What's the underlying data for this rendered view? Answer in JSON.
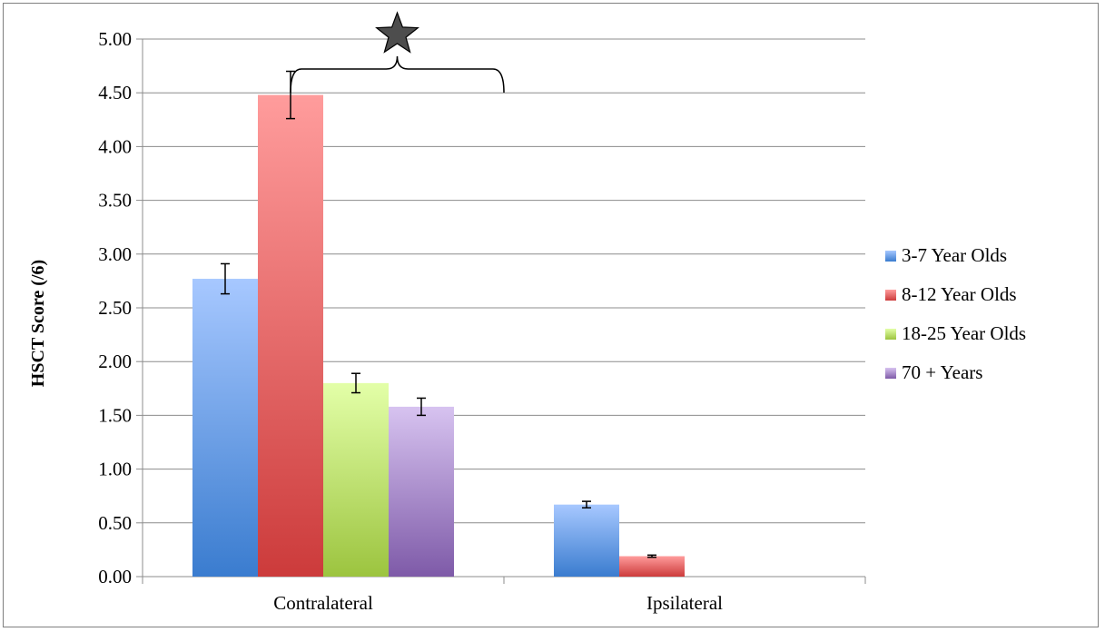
{
  "chart_data": {
    "type": "bar",
    "title": "",
    "xlabel": "",
    "ylabel": "HSCT Score (/6)",
    "categories": [
      "Contralateral",
      "Ipsilateral"
    ],
    "ylim": [
      0,
      5
    ],
    "yticks": [
      "0.00",
      "0.50",
      "1.00",
      "1.50",
      "2.00",
      "2.50",
      "3.00",
      "3.50",
      "4.00",
      "4.50",
      "5.00"
    ],
    "grid": true,
    "legend_position": "right",
    "series": [
      {
        "name": "3-7 Year Olds",
        "values": [
          2.77,
          0.67
        ],
        "errors": [
          0.14,
          0.03
        ],
        "color_top": "#a7c8ff",
        "color_bottom": "#3a7ccf"
      },
      {
        "name": "8-12 Year Olds",
        "values": [
          4.48,
          0.19
        ],
        "errors": [
          0.22,
          0.01
        ],
        "color_top": "#ff9c9c",
        "color_bottom": "#cc3b3b"
      },
      {
        "name": "18-25 Year Olds",
        "values": [
          1.8,
          null
        ],
        "errors": [
          0.09,
          null
        ],
        "color_top": "#e3ffa8",
        "color_bottom": "#9cc43f"
      },
      {
        "name": "70 + Years",
        "values": [
          1.58,
          null
        ],
        "errors": [
          0.08,
          null
        ],
        "color_top": "#d7c3f0",
        "color_bottom": "#7e5aa8"
      }
    ],
    "annotations": [
      {
        "type": "significance-bracket",
        "from_category": "Contralateral",
        "to_category": "Ipsilateral",
        "marker": "star"
      }
    ]
  }
}
